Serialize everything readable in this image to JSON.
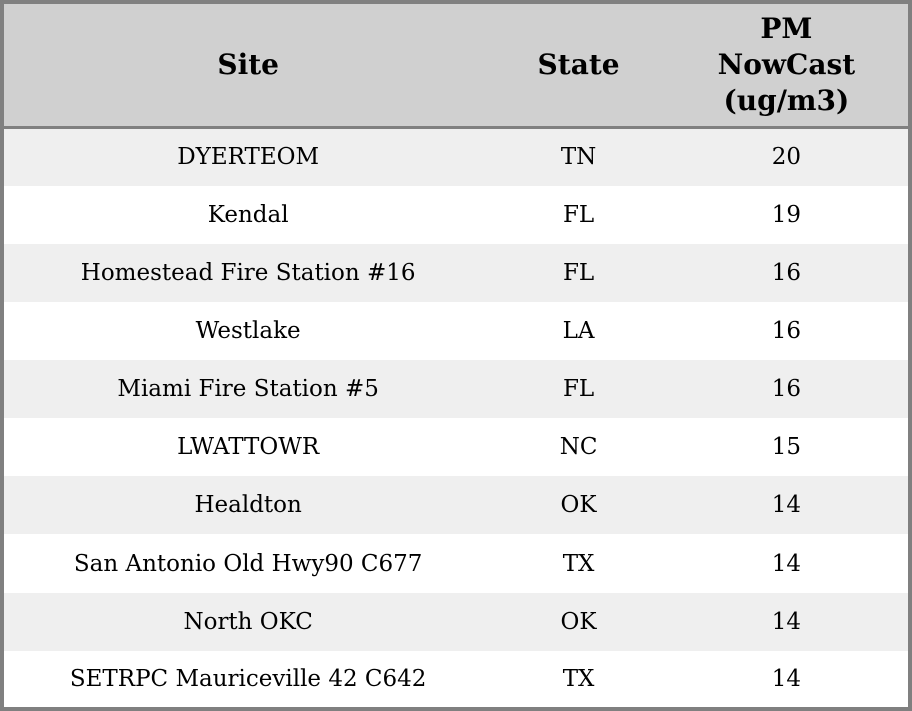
{
  "chart_data": {
    "type": "table",
    "columns": [
      {
        "key": "site",
        "label": "Site"
      },
      {
        "key": "state",
        "label": "State"
      },
      {
        "key": "pm_nowcast",
        "label": "PM NowCast (ug/m3)"
      }
    ],
    "rows": [
      {
        "site": "DYERTEOM",
        "state": "TN",
        "pm_nowcast": "20"
      },
      {
        "site": "Kendal",
        "state": "FL",
        "pm_nowcast": "19"
      },
      {
        "site": "Homestead Fire Station #16",
        "state": "FL",
        "pm_nowcast": "16"
      },
      {
        "site": "Westlake",
        "state": "LA",
        "pm_nowcast": "16"
      },
      {
        "site": "Miami Fire Station #5",
        "state": "FL",
        "pm_nowcast": "16"
      },
      {
        "site": "LWATTOWR",
        "state": "NC",
        "pm_nowcast": "15"
      },
      {
        "site": "Healdton",
        "state": "OK",
        "pm_nowcast": "14"
      },
      {
        "site": "San Antonio Old Hwy90 C677",
        "state": "TX",
        "pm_nowcast": "14"
      },
      {
        "site": "North OKC",
        "state": "OK",
        "pm_nowcast": "14"
      },
      {
        "site": "SETRPC Mauriceville 42 C642",
        "state": "TX",
        "pm_nowcast": "14"
      }
    ]
  },
  "colors": {
    "header_bg": "#d0d0d0",
    "stripe_bg": "#efefef",
    "row_bg": "#ffffff",
    "border": "#808080",
    "text": "#000000"
  }
}
